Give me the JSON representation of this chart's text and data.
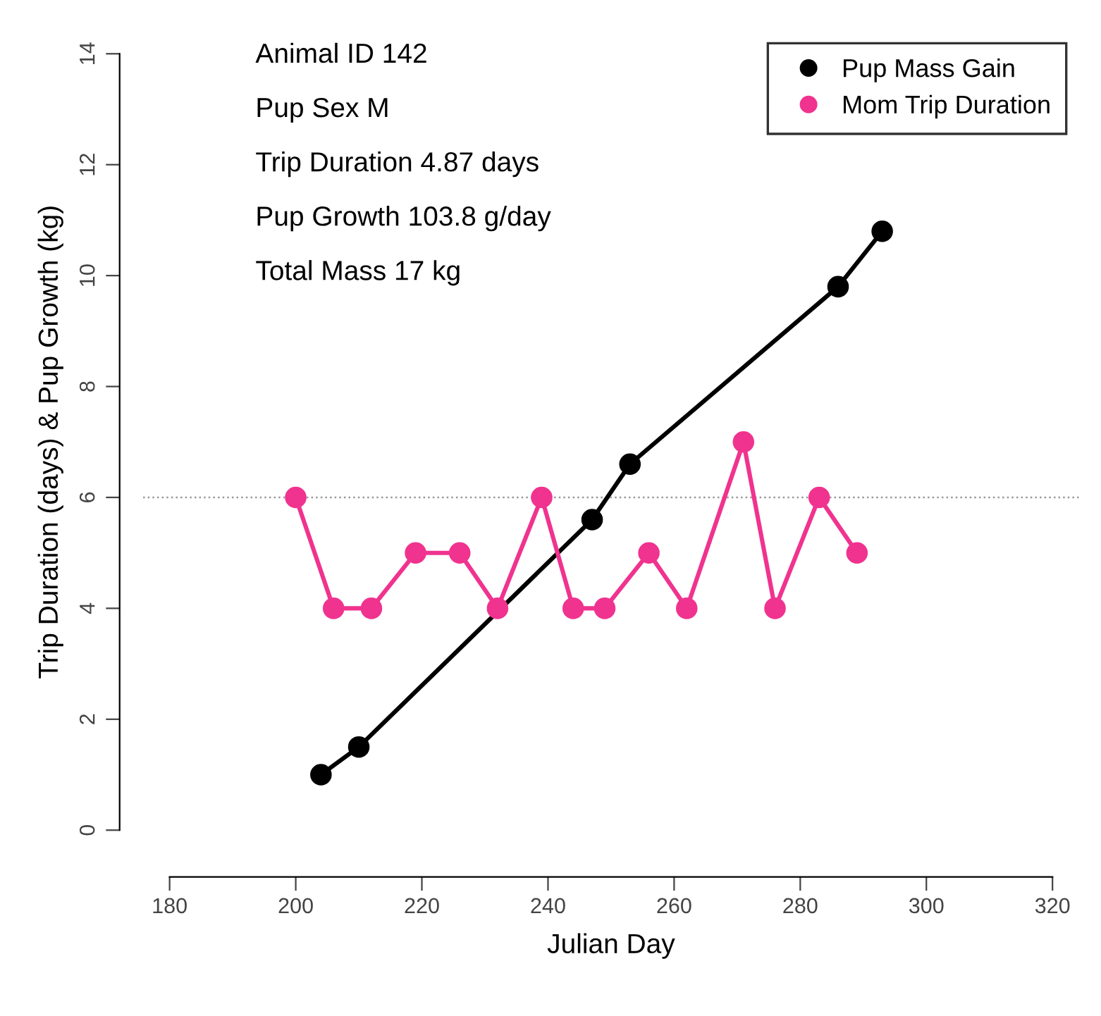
{
  "chart_data": {
    "type": "line",
    "xlabel": "Julian Day",
    "ylabel": "Trip Duration (days) & Pup Growth (kg)",
    "annotations": [
      "Animal ID 142",
      "Pup Sex M",
      "Trip Duration 4.87 days",
      "Pup Growth 103.8 g/day",
      "Total Mass 17 kg"
    ],
    "series": [
      {
        "name": "Pup Mass Gain",
        "color": "#000000",
        "x": [
          204,
          210,
          247,
          253,
          286,
          293
        ],
        "values": [
          1,
          1.5,
          5.6,
          6.6,
          9.8,
          10.8
        ]
      },
      {
        "name": "Mom Trip Duration",
        "color": "#f0338f",
        "x": [
          200,
          206,
          212,
          219,
          226,
          232,
          239,
          244,
          249,
          256,
          262,
          271,
          276,
          283,
          289
        ],
        "values": [
          6,
          4,
          4,
          5,
          5,
          4,
          6,
          4,
          4,
          5,
          4,
          7,
          4,
          6,
          5
        ]
      }
    ],
    "xlim": [
      180,
      320
    ],
    "xticks": [
      180,
      200,
      220,
      240,
      260,
      280,
      300,
      320
    ],
    "ylim": [
      0,
      14
    ],
    "yticks": [
      0,
      2,
      4,
      6,
      8,
      10,
      12,
      14
    ],
    "ref_lines": [
      {
        "axis": "y",
        "value": 6,
        "color": "#999999",
        "line_style": "dotted"
      }
    ],
    "marker": "circle",
    "line_style": "solid",
    "legend": "top right",
    "grid": false
  }
}
